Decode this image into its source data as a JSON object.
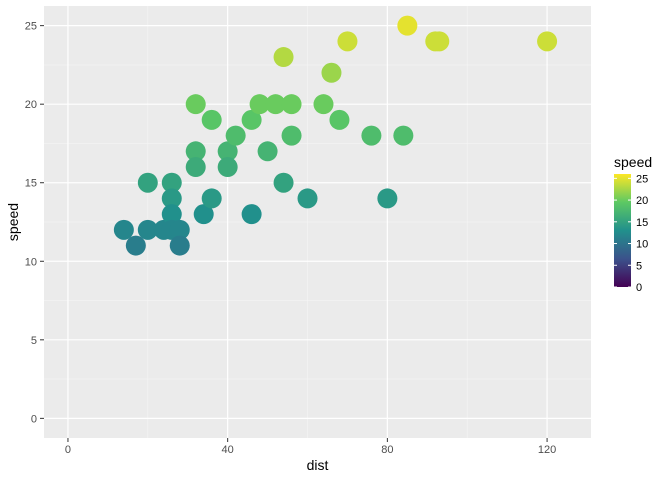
{
  "chart_data": {
    "type": "scatter",
    "title": "",
    "xlabel": "dist",
    "ylabel": "speed",
    "xlim": [
      -6,
      131
    ],
    "ylim": [
      -1.25,
      26.25
    ],
    "x_ticks": [
      0,
      40,
      80,
      120
    ],
    "y_ticks": [
      0,
      5,
      10,
      15,
      20,
      25
    ],
    "grid": true,
    "legend": {
      "title": "speed",
      "placement": "right",
      "ticks": [
        0,
        5,
        10,
        15,
        20,
        25
      ],
      "range": [
        0,
        26
      ],
      "palette": "viridis"
    },
    "points": [
      {
        "x": 14,
        "y": 12
      },
      {
        "x": 17,
        "y": 11
      },
      {
        "x": 20,
        "y": 15
      },
      {
        "x": 20,
        "y": 12
      },
      {
        "x": 24,
        "y": 12
      },
      {
        "x": 26,
        "y": 15
      },
      {
        "x": 26,
        "y": 14
      },
      {
        "x": 26,
        "y": 13
      },
      {
        "x": 26,
        "y": 12
      },
      {
        "x": 28,
        "y": 12
      },
      {
        "x": 28,
        "y": 11
      },
      {
        "x": 32,
        "y": 20
      },
      {
        "x": 32,
        "y": 17
      },
      {
        "x": 32,
        "y": 16
      },
      {
        "x": 34,
        "y": 13
      },
      {
        "x": 36,
        "y": 19
      },
      {
        "x": 36,
        "y": 14
      },
      {
        "x": 40,
        "y": 17
      },
      {
        "x": 40,
        "y": 16
      },
      {
        "x": 42,
        "y": 18
      },
      {
        "x": 46,
        "y": 19
      },
      {
        "x": 46,
        "y": 13
      },
      {
        "x": 48,
        "y": 20
      },
      {
        "x": 50,
        "y": 17
      },
      {
        "x": 52,
        "y": 20
      },
      {
        "x": 54,
        "y": 23
      },
      {
        "x": 54,
        "y": 15
      },
      {
        "x": 56,
        "y": 20
      },
      {
        "x": 56,
        "y": 18
      },
      {
        "x": 60,
        "y": 14
      },
      {
        "x": 64,
        "y": 20
      },
      {
        "x": 66,
        "y": 22
      },
      {
        "x": 68,
        "y": 19
      },
      {
        "x": 70,
        "y": 24
      },
      {
        "x": 76,
        "y": 18
      },
      {
        "x": 80,
        "y": 14
      },
      {
        "x": 84,
        "y": 18
      },
      {
        "x": 85,
        "y": 25
      },
      {
        "x": 92,
        "y": 24
      },
      {
        "x": 93,
        "y": 24
      },
      {
        "x": 120,
        "y": 24
      }
    ]
  }
}
